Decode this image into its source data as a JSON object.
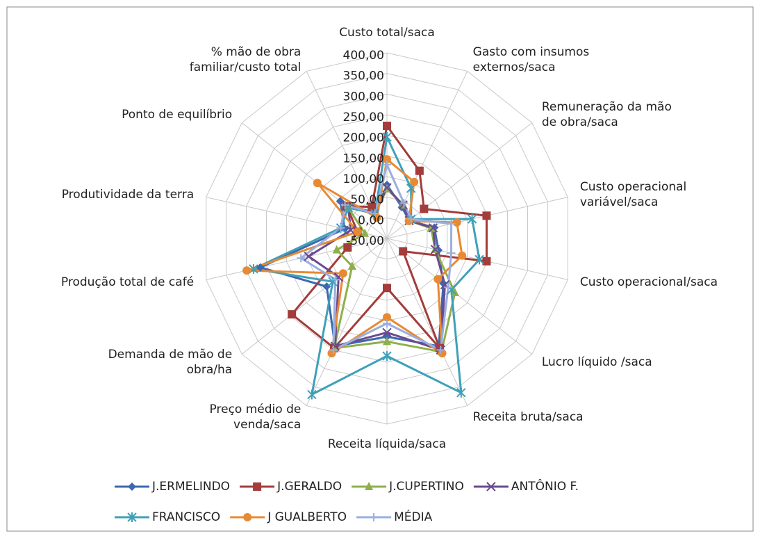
{
  "chart_data": {
    "type": "radar",
    "categories": [
      "Custo total/saca",
      "Gasto com insumos externos/saca",
      "Remuneração da mão de obra/saca",
      "Custo operacional variável/saca",
      "Custo operacional/saca",
      "Lucro líquido /saca",
      "Receita bruta/saca",
      "Receita líquida/saca",
      "Preço médio de venda/saca",
      "Demanda de mão de obra/ha",
      "Produção total de café",
      "Produtividade da terra",
      "Ponto de equilíbrio",
      "% mão de obra familiar/custo total"
    ],
    "ylim": [
      -50,
      400
    ],
    "yticks": [
      {
        "value": -50,
        "label": "-50,00"
      },
      {
        "value": 0,
        "label": "0,00"
      },
      {
        "value": 50,
        "label": "50,00"
      },
      {
        "value": 100,
        "label": "100,00"
      },
      {
        "value": 150,
        "label": "150,00"
      },
      {
        "value": 200,
        "label": "200,00"
      },
      {
        "value": 250,
        "label": "250,00"
      },
      {
        "value": 300,
        "label": "300,00"
      },
      {
        "value": 350,
        "label": "350,00"
      },
      {
        "value": 400,
        "label": "400,00"
      }
    ],
    "grid": true,
    "series": [
      {
        "name": "J.ERMELINDO",
        "color": "#3d68b0",
        "marker": "diamond",
        "values": [
          80,
          34,
          19,
          68,
          78,
          125,
          240,
          188,
          240,
          137,
          265,
          55,
          95,
          17
        ]
      },
      {
        "name": "J.GERALDO",
        "color": "#a33c3a",
        "marker": "square",
        "values": [
          223,
          132,
          65,
          198,
          198,
          0,
          245,
          70,
          245,
          245,
          48,
          23,
          75,
          35
        ]
      },
      {
        "name": "J.CUPERTINO",
        "color": "#8db04a",
        "marker": "triangle",
        "values": [
          70,
          40,
          19,
          60,
          70,
          161,
          255,
          200,
          245,
          58,
          75,
          5,
          70,
          17
        ]
      },
      {
        "name": "ANTÔNIO F.",
        "color": "#6b4a8f",
        "marker": "x",
        "values": [
          73,
          40,
          19,
          65,
          70,
          130,
          250,
          178,
          240,
          100,
          145,
          40,
          70,
          17
        ]
      },
      {
        "name": "FRANCISCO",
        "color": "#3fa0b9",
        "marker": "star",
        "values": [
          196,
          85,
          25,
          162,
          180,
          150,
          365,
          235,
          370,
          118,
          282,
          65,
          70,
          17
        ]
      },
      {
        "name": "J GUALBERTO",
        "color": "#e88a33",
        "marker": "circle",
        "values": [
          142,
          102,
          18,
          124,
          137,
          108,
          259,
          141,
          259,
          86,
          299,
          23,
          166,
          6
        ]
      },
      {
        "name": "MÉDIA",
        "color": "#9aaee0",
        "marker": "plus",
        "values": [
          129,
          45,
          25,
          110,
          110,
          140,
          250,
          156,
          250,
          110,
          164,
          65,
          80,
          17
        ]
      }
    ]
  }
}
